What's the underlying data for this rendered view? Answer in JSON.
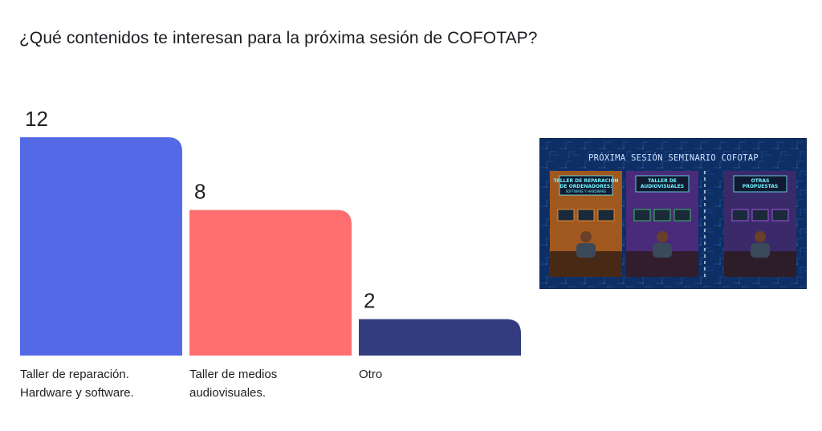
{
  "question": "¿Qué contenidos te interesan para la próxima sesión de COFOTAP?",
  "chart_data": {
    "type": "bar",
    "categories": [
      [
        "Taller de reparación.",
        "Hardware y software."
      ],
      [
        "Taller de medios",
        "audiovisuales."
      ],
      [
        "Otro"
      ]
    ],
    "values": [
      12,
      8,
      2
    ],
    "ylim": [
      0,
      12
    ],
    "grid": false,
    "colors": [
      "#5469e6",
      "#ff6f6f",
      "#323c7e"
    ]
  },
  "image": {
    "title": "PRÓXIMA SESIÓN SEMINARIO COFOTAP",
    "tiles": [
      {
        "title_lines": [
          "TALLER DE REPARACIÓN",
          "DE ORDENADORES:"
        ],
        "sub": "SOFTWARE Y HARDWARE",
        "scene": "#a0581f",
        "glow": "#f0a040"
      },
      {
        "title_lines": [
          "TALLER DE",
          "AUDIOVISUALES"
        ],
        "sub": "",
        "scene": "#4a2a7a",
        "glow": "#3fe06a"
      },
      {
        "title_lines": [
          "OTRAS",
          "PROPUESTAS"
        ],
        "sub": "",
        "scene": "#3a2a6a",
        "glow": "#c060ff"
      }
    ]
  }
}
